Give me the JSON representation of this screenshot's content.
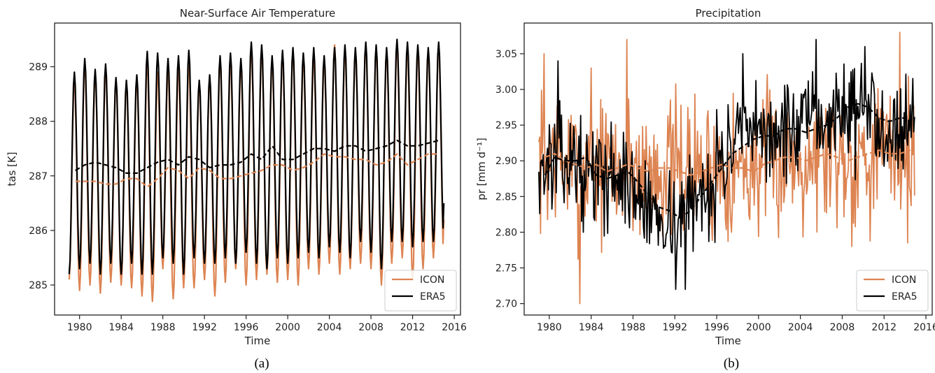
{
  "colors": {
    "icon": "#dd8452",
    "era5": "#000000",
    "axis": "#222222"
  },
  "captions": [
    "(a)",
    "(b)"
  ],
  "chart_data": [
    {
      "type": "line",
      "title": "Near-Surface Air Temperature",
      "xlabel": "Time",
      "ylabel": "tas [K]",
      "xlim": [
        1977.6,
        2016.6
      ],
      "ylim": [
        284.45,
        289.8
      ],
      "xticks": [
        1980,
        1984,
        1988,
        1992,
        1996,
        2000,
        2004,
        2008,
        2012,
        2016
      ],
      "yticks": [
        285,
        286,
        287,
        288,
        289
      ],
      "legend": {
        "position": "lower-right",
        "entries": [
          "ICON",
          "ERA5"
        ]
      },
      "grid": false,
      "x_start": 1979.0,
      "series": [
        {
          "name": "ICON",
          "color": "#dd8452",
          "kind": "monthly",
          "annual_max": [
            288.75,
            289.05,
            288.9,
            288.95,
            288.75,
            288.7,
            288.8,
            289.1,
            288.9,
            288.95,
            289.0,
            289.05,
            288.7,
            288.8,
            289.15,
            289.1,
            289.05,
            289.35,
            289.3,
            289.1,
            289.25,
            289.3,
            289.15,
            289.2,
            289.1,
            289.4,
            289.3,
            289.3,
            289.4,
            289.35,
            289.3,
            289.4,
            289.35,
            289.3,
            289.3,
            289.4
          ],
          "annual_min": [
            285.1,
            284.9,
            285.0,
            284.85,
            285.05,
            285.0,
            284.95,
            284.8,
            284.7,
            285.3,
            284.75,
            284.95,
            284.95,
            285.1,
            284.8,
            285.05,
            285.3,
            285.0,
            285.1,
            285.2,
            285.05,
            285.1,
            285.0,
            285.3,
            285.2,
            285.4,
            285.2,
            285.3,
            285.4,
            285.3,
            285.0,
            285.4,
            285.5,
            285.1,
            285.3,
            285.5
          ]
        },
        {
          "name": "ERA5",
          "color": "#000000",
          "kind": "monthly",
          "annual_max": [
            288.9,
            289.15,
            288.95,
            289.05,
            288.8,
            288.75,
            288.85,
            289.28,
            289.25,
            289.15,
            289.2,
            289.3,
            288.75,
            288.85,
            289.2,
            289.25,
            289.15,
            289.45,
            289.4,
            289.2,
            289.3,
            289.35,
            289.25,
            289.35,
            289.2,
            289.35,
            289.4,
            289.35,
            289.45,
            289.4,
            289.35,
            289.5,
            289.45,
            289.4,
            289.35,
            289.45
          ],
          "annual_min": [
            285.2,
            285.3,
            285.4,
            285.2,
            285.4,
            285.2,
            285.4,
            285.2,
            285.2,
            285.5,
            285.4,
            285.2,
            285.5,
            285.4,
            285.4,
            285.5,
            285.4,
            285.6,
            285.4,
            285.3,
            285.5,
            285.4,
            285.5,
            285.6,
            285.5,
            285.7,
            285.6,
            285.5,
            285.8,
            285.6,
            285.3,
            285.8,
            285.8,
            285.7,
            285.8,
            285.8
          ]
        },
        {
          "name": "ICON 12-month running mean",
          "color": "#dd8452",
          "style": "dashed",
          "x": [
            1979.6,
            1980.5,
            1981.5,
            1982.5,
            1983.5,
            1984.5,
            1985.5,
            1986.5,
            1987.5,
            1988.5,
            1989.5,
            1990.5,
            1991.5,
            1992.5,
            1993.5,
            1994.5,
            1995.5,
            1996.5,
            1997.5,
            1998.5,
            1999.5,
            2000.5,
            2001.5,
            2002.5,
            2003.5,
            2004.5,
            2005.5,
            2006.5,
            2007.5,
            2008.5,
            2009.5,
            2010.5,
            2011.5,
            2012.5,
            2013.5,
            2014.5
          ],
          "y": [
            286.9,
            286.9,
            286.9,
            286.85,
            286.85,
            286.95,
            286.95,
            286.8,
            286.95,
            287.15,
            287.1,
            286.95,
            287.15,
            287.1,
            286.95,
            286.95,
            287.0,
            287.05,
            287.1,
            287.2,
            287.2,
            287.1,
            287.15,
            287.25,
            287.4,
            287.35,
            287.35,
            287.3,
            287.3,
            287.2,
            287.25,
            287.4,
            287.2,
            287.3,
            287.4,
            287.4
          ]
        },
        {
          "name": "ERA5 12-month running mean",
          "color": "#000000",
          "style": "dashed",
          "x": [
            1979.6,
            1980.5,
            1981.5,
            1982.5,
            1983.5,
            1984.5,
            1985.5,
            1986.5,
            1987.5,
            1988.5,
            1989.5,
            1990.5,
            1991.5,
            1992.5,
            1993.5,
            1994.5,
            1995.5,
            1996.5,
            1997.5,
            1998.5,
            1999.5,
            2000.5,
            2001.5,
            2002.5,
            2003.5,
            2004.5,
            2005.5,
            2006.5,
            2007.5,
            2008.5,
            2009.5,
            2010.5,
            2011.5,
            2012.5,
            2013.5,
            2014.5
          ],
          "y": [
            287.1,
            287.2,
            287.25,
            287.2,
            287.15,
            287.05,
            287.05,
            287.15,
            287.25,
            287.3,
            287.2,
            287.35,
            287.3,
            287.15,
            287.2,
            287.2,
            287.25,
            287.4,
            287.3,
            287.55,
            287.3,
            287.3,
            287.4,
            287.5,
            287.5,
            287.45,
            287.55,
            287.55,
            287.45,
            287.5,
            287.55,
            287.65,
            287.55,
            287.55,
            287.6,
            287.65
          ]
        }
      ]
    },
    {
      "type": "line",
      "title": "Precipitation",
      "xlabel": "Time",
      "ylabel": "pr [mm d⁻¹]",
      "xlim": [
        1977.6,
        2016.6
      ],
      "ylim": [
        2.684,
        3.093
      ],
      "xticks": [
        1980,
        1984,
        1988,
        1992,
        1996,
        2000,
        2004,
        2008,
        2012,
        2016
      ],
      "yticks": [
        2.7,
        2.75,
        2.8,
        2.85,
        2.9,
        2.95,
        3.0,
        3.05
      ],
      "legend": {
        "position": "lower-right",
        "entries": [
          "ICON",
          "ERA5"
        ]
      },
      "grid": false,
      "x_start": 1979.0,
      "series": [
        {
          "name": "ICON",
          "color": "#dd8452",
          "kind": "noisy",
          "mean": [
            2.9,
            2.91,
            2.9,
            2.89,
            2.89,
            2.89,
            2.89,
            2.89,
            2.89,
            2.89,
            2.89,
            2.89,
            2.89,
            2.89,
            2.89,
            2.89,
            2.89,
            2.89,
            2.89,
            2.89,
            2.89,
            2.9,
            2.9,
            2.9,
            2.91,
            2.91,
            2.91,
            2.91,
            2.91,
            2.91,
            2.91,
            2.91,
            2.91,
            2.91,
            2.91,
            2.91
          ],
          "spread": 0.075,
          "seed": 7,
          "extremes": [
            [
              1979.5,
              3.05
            ],
            [
              1982.9,
              2.7
            ],
            [
              1987.4,
              3.07
            ],
            [
              1984.0,
              3.03
            ],
            [
              2013.5,
              3.08
            ],
            [
              2008.9,
              2.78
            ]
          ]
        },
        {
          "name": "ERA5",
          "color": "#000000",
          "kind": "noisy",
          "mean": [
            2.89,
            2.9,
            2.9,
            2.9,
            2.88,
            2.88,
            2.88,
            2.88,
            2.87,
            2.85,
            2.83,
            2.83,
            2.82,
            2.82,
            2.84,
            2.85,
            2.87,
            2.9,
            2.92,
            2.93,
            2.93,
            2.94,
            2.94,
            2.94,
            2.94,
            2.95,
            2.95,
            2.96,
            2.97,
            2.97,
            2.97,
            2.97,
            2.96,
            2.95,
            2.95,
            2.96
          ],
          "spread": 0.05,
          "seed": 13,
          "extremes": [
            [
              1992.1,
              2.72
            ],
            [
              1993.0,
              2.72
            ],
            [
              1980.8,
              3.04
            ],
            [
              1998.5,
              3.05
            ],
            [
              2005.5,
              3.07
            ],
            [
              2010.2,
              3.06
            ]
          ]
        },
        {
          "name": "ICON 12-month running mean",
          "color": "#dd8452",
          "style": "dashed",
          "x": [
            1979.6,
            1980.5,
            1981.5,
            1982.5,
            1983.5,
            1984.5,
            1985.5,
            1986.5,
            1987.5,
            1988.5,
            1989.5,
            1990.5,
            1991.5,
            1992.5,
            1993.5,
            1994.5,
            1995.5,
            1996.5,
            1997.5,
            1998.5,
            1999.5,
            2000.5,
            2001.5,
            2002.5,
            2003.5,
            2004.5,
            2005.5,
            2006.5,
            2007.5,
            2008.5,
            2009.5,
            2010.5,
            2011.5,
            2012.5,
            2013.5,
            2014.5
          ],
          "y": [
            2.905,
            2.91,
            2.9,
            2.895,
            2.89,
            2.895,
            2.885,
            2.89,
            2.895,
            2.89,
            2.885,
            2.89,
            2.89,
            2.885,
            2.88,
            2.885,
            2.89,
            2.895,
            2.89,
            2.89,
            2.885,
            2.895,
            2.9,
            2.905,
            2.905,
            2.9,
            2.905,
            2.91,
            2.905,
            2.9,
            2.905,
            2.91,
            2.915,
            2.91,
            2.91,
            2.915
          ]
        },
        {
          "name": "ERA5 12-month running mean",
          "color": "#000000",
          "style": "dashed",
          "x": [
            1979.6,
            1980.5,
            1981.5,
            1982.5,
            1983.5,
            1984.5,
            1985.5,
            1986.5,
            1987.5,
            1988.5,
            1989.5,
            1990.5,
            1991.5,
            1992.5,
            1993.5,
            1994.5,
            1995.5,
            1996.5,
            1997.5,
            1998.5,
            1999.5,
            2000.5,
            2001.5,
            2002.5,
            2003.5,
            2004.5,
            2005.5,
            2006.5,
            2007.5,
            2008.5,
            2009.5,
            2010.5,
            2011.5,
            2012.5,
            2013.5,
            2014.5
          ],
          "y": [
            2.88,
            2.905,
            2.9,
            2.9,
            2.905,
            2.88,
            2.875,
            2.88,
            2.885,
            2.87,
            2.85,
            2.835,
            2.83,
            2.82,
            2.83,
            2.85,
            2.87,
            2.89,
            2.91,
            2.92,
            2.93,
            2.935,
            2.935,
            2.945,
            2.945,
            2.94,
            2.945,
            2.95,
            2.96,
            2.975,
            2.98,
            2.975,
            2.96,
            2.955,
            2.96,
            2.96
          ]
        }
      ]
    }
  ]
}
